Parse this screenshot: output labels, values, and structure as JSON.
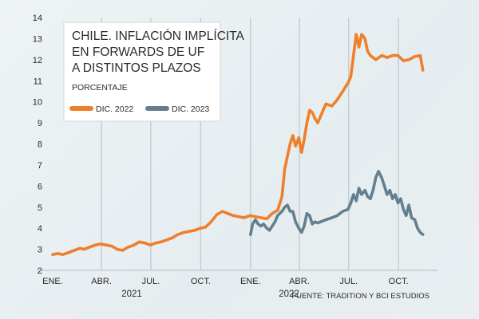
{
  "chart_data": {
    "type": "line",
    "title": [
      "CHILE. INFLACIÓN IMPLÍCITA",
      "EN FORWARDS DE UF",
      "A DISTINTOS PLAZOS"
    ],
    "subtitle": "PORCENTAJE",
    "source": "FUENTE: TRADITION Y BCI ESTUDIOS",
    "ylim": [
      2,
      14
    ],
    "yticks": [
      "2",
      "3",
      "4",
      "5",
      "6",
      "7",
      "8",
      "9",
      "10",
      "11",
      "12",
      "13",
      "14"
    ],
    "xtick_labels": [
      "ENE.",
      "ABR.",
      "JUL.",
      "OCT.",
      "ENE.",
      "ABR.",
      "JUL.",
      "OCT."
    ],
    "year_labels": [
      "2021",
      "2022"
    ],
    "grid": "vertical",
    "legend": "top-left",
    "series": [
      {
        "name": "DIC. 2022",
        "color": "#f07f2c",
        "points": [
          [
            "2021-01-01",
            2.75
          ],
          [
            "2021-01-10",
            2.8
          ],
          [
            "2021-01-20",
            2.75
          ],
          [
            "2021-01-31",
            2.85
          ],
          [
            "2021-02-10",
            2.95
          ],
          [
            "2021-02-20",
            3.05
          ],
          [
            "2021-02-28",
            3.0
          ],
          [
            "2021-03-10",
            3.1
          ],
          [
            "2021-03-20",
            3.2
          ],
          [
            "2021-03-31",
            3.25
          ],
          [
            "2021-04-10",
            3.2
          ],
          [
            "2021-04-20",
            3.15
          ],
          [
            "2021-04-30",
            3.0
          ],
          [
            "2021-05-10",
            2.95
          ],
          [
            "2021-05-20",
            3.1
          ],
          [
            "2021-05-31",
            3.2
          ],
          [
            "2021-06-10",
            3.35
          ],
          [
            "2021-06-20",
            3.3
          ],
          [
            "2021-06-30",
            3.2
          ],
          [
            "2021-07-10",
            3.3
          ],
          [
            "2021-07-20",
            3.35
          ],
          [
            "2021-07-31",
            3.45
          ],
          [
            "2021-08-10",
            3.55
          ],
          [
            "2021-08-20",
            3.7
          ],
          [
            "2021-08-31",
            3.8
          ],
          [
            "2021-09-10",
            3.85
          ],
          [
            "2021-09-20",
            3.9
          ],
          [
            "2021-09-30",
            4.0
          ],
          [
            "2021-10-10",
            4.05
          ],
          [
            "2021-10-20",
            4.3
          ],
          [
            "2021-10-31",
            4.65
          ],
          [
            "2021-11-10",
            4.8
          ],
          [
            "2021-11-20",
            4.7
          ],
          [
            "2021-11-30",
            4.6
          ],
          [
            "2021-12-10",
            4.55
          ],
          [
            "2021-12-20",
            4.5
          ],
          [
            "2021-12-31",
            4.6
          ],
          [
            "2022-01-10",
            4.55
          ],
          [
            "2022-01-20",
            4.5
          ],
          [
            "2022-01-31",
            4.45
          ],
          [
            "2022-02-10",
            4.7
          ],
          [
            "2022-02-20",
            4.85
          ],
          [
            "2022-02-28",
            5.5
          ],
          [
            "2022-03-05",
            6.8
          ],
          [
            "2022-03-10",
            7.4
          ],
          [
            "2022-03-15",
            8.0
          ],
          [
            "2022-03-20",
            8.4
          ],
          [
            "2022-03-25",
            7.9
          ],
          [
            "2022-03-31",
            8.3
          ],
          [
            "2022-04-05",
            7.6
          ],
          [
            "2022-04-10",
            8.2
          ],
          [
            "2022-04-15",
            9.0
          ],
          [
            "2022-04-20",
            9.6
          ],
          [
            "2022-04-25",
            9.5
          ],
          [
            "2022-04-30",
            9.2
          ],
          [
            "2022-05-05",
            9.0
          ],
          [
            "2022-05-10",
            9.3
          ],
          [
            "2022-05-15",
            9.6
          ],
          [
            "2022-05-20",
            9.9
          ],
          [
            "2022-05-31",
            9.8
          ],
          [
            "2022-06-10",
            10.1
          ],
          [
            "2022-06-20",
            10.5
          ],
          [
            "2022-06-30",
            10.9
          ],
          [
            "2022-07-05",
            11.2
          ],
          [
            "2022-07-10",
            12.2
          ],
          [
            "2022-07-15",
            13.2
          ],
          [
            "2022-07-20",
            12.6
          ],
          [
            "2022-07-25",
            13.2
          ],
          [
            "2022-07-31",
            13.0
          ],
          [
            "2022-08-05",
            12.4
          ],
          [
            "2022-08-10",
            12.2
          ],
          [
            "2022-08-20",
            12.0
          ],
          [
            "2022-08-31",
            12.2
          ],
          [
            "2022-09-10",
            12.1
          ],
          [
            "2022-09-20",
            12.2
          ],
          [
            "2022-09-30",
            12.2
          ],
          [
            "2022-10-10",
            11.95
          ],
          [
            "2022-10-20",
            12.0
          ],
          [
            "2022-10-31",
            12.15
          ],
          [
            "2022-11-10",
            12.2
          ],
          [
            "2022-11-15",
            11.5
          ]
        ]
      },
      {
        "name": "DIC. 2023",
        "color": "#637f8e",
        "points": [
          [
            "2022-01-01",
            3.7
          ],
          [
            "2022-01-05",
            4.2
          ],
          [
            "2022-01-10",
            4.4
          ],
          [
            "2022-01-15",
            4.2
          ],
          [
            "2022-01-20",
            4.1
          ],
          [
            "2022-01-25",
            4.2
          ],
          [
            "2022-01-31",
            4.0
          ],
          [
            "2022-02-05",
            3.9
          ],
          [
            "2022-02-10",
            4.1
          ],
          [
            "2022-02-15",
            4.3
          ],
          [
            "2022-02-20",
            4.6
          ],
          [
            "2022-02-28",
            4.8
          ],
          [
            "2022-03-05",
            5.0
          ],
          [
            "2022-03-10",
            5.1
          ],
          [
            "2022-03-15",
            4.8
          ],
          [
            "2022-03-20",
            4.8
          ],
          [
            "2022-03-25",
            4.3
          ],
          [
            "2022-03-31",
            4.0
          ],
          [
            "2022-04-05",
            3.8
          ],
          [
            "2022-04-10",
            4.1
          ],
          [
            "2022-04-15",
            4.7
          ],
          [
            "2022-04-20",
            4.6
          ],
          [
            "2022-04-25",
            4.2
          ],
          [
            "2022-04-30",
            4.3
          ],
          [
            "2022-05-05",
            4.25
          ],
          [
            "2022-05-10",
            4.3
          ],
          [
            "2022-05-20",
            4.4
          ],
          [
            "2022-05-31",
            4.5
          ],
          [
            "2022-06-10",
            4.6
          ],
          [
            "2022-06-20",
            4.8
          ],
          [
            "2022-06-30",
            4.9
          ],
          [
            "2022-07-05",
            5.2
          ],
          [
            "2022-07-10",
            5.6
          ],
          [
            "2022-07-15",
            5.3
          ],
          [
            "2022-07-20",
            5.9
          ],
          [
            "2022-07-25",
            5.6
          ],
          [
            "2022-07-31",
            5.8
          ],
          [
            "2022-08-05",
            5.5
          ],
          [
            "2022-08-10",
            5.4
          ],
          [
            "2022-08-15",
            5.8
          ],
          [
            "2022-08-20",
            6.4
          ],
          [
            "2022-08-25",
            6.7
          ],
          [
            "2022-08-31",
            6.4
          ],
          [
            "2022-09-05",
            6.0
          ],
          [
            "2022-09-10",
            5.6
          ],
          [
            "2022-09-15",
            5.8
          ],
          [
            "2022-09-20",
            5.4
          ],
          [
            "2022-09-25",
            5.6
          ],
          [
            "2022-09-30",
            5.2
          ],
          [
            "2022-10-05",
            5.4
          ],
          [
            "2022-10-10",
            4.9
          ],
          [
            "2022-10-15",
            4.6
          ],
          [
            "2022-10-20",
            5.1
          ],
          [
            "2022-10-25",
            4.5
          ],
          [
            "2022-10-31",
            4.4
          ],
          [
            "2022-11-05",
            4.0
          ],
          [
            "2022-11-10",
            3.8
          ],
          [
            "2022-11-15",
            3.7
          ]
        ]
      }
    ]
  }
}
